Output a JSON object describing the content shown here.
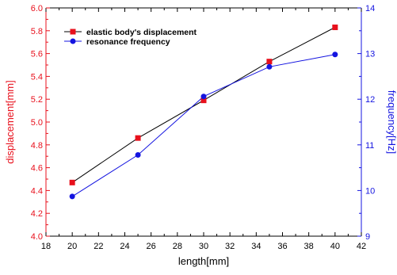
{
  "chart_data": {
    "type": "line",
    "xlabel": "length[mm]",
    "ylabel_left": "displacement[mm]",
    "ylabel_right": "frequency[Hz]",
    "xlim": [
      18,
      42
    ],
    "ylim_left": [
      4.0,
      6.0
    ],
    "ylim_right": [
      9,
      14
    ],
    "x_ticks": [
      18,
      20,
      22,
      24,
      26,
      28,
      30,
      32,
      34,
      36,
      38,
      40,
      42
    ],
    "y_left_ticks": [
      "4.0",
      "4.2",
      "4.4",
      "4.6",
      "4.8",
      "5.0",
      "5.2",
      "5.4",
      "5.6",
      "5.8",
      "6.0"
    ],
    "y_right_ticks": [
      "9",
      "10",
      "11",
      "12",
      "13",
      "14"
    ],
    "grid": false,
    "legend_position": "top-left",
    "series": [
      {
        "name": "elastic body's displacement",
        "axis": "left",
        "marker": "square",
        "line_color": "#000000",
        "marker_color": "#e8101c",
        "x": [
          20,
          25,
          30,
          35,
          40
        ],
        "y": [
          4.47,
          4.86,
          5.19,
          5.53,
          5.83
        ]
      },
      {
        "name": "resonance frequency",
        "axis": "right",
        "marker": "circle",
        "line_color": "#1414e0",
        "marker_color": "#1414e0",
        "x": [
          20,
          25,
          30,
          35,
          40
        ],
        "y": [
          9.87,
          10.78,
          12.06,
          12.71,
          12.98
        ]
      }
    ],
    "colors": {
      "left_axis": "#e8101c",
      "right_axis": "#1414e0",
      "frame": "#000000"
    }
  }
}
